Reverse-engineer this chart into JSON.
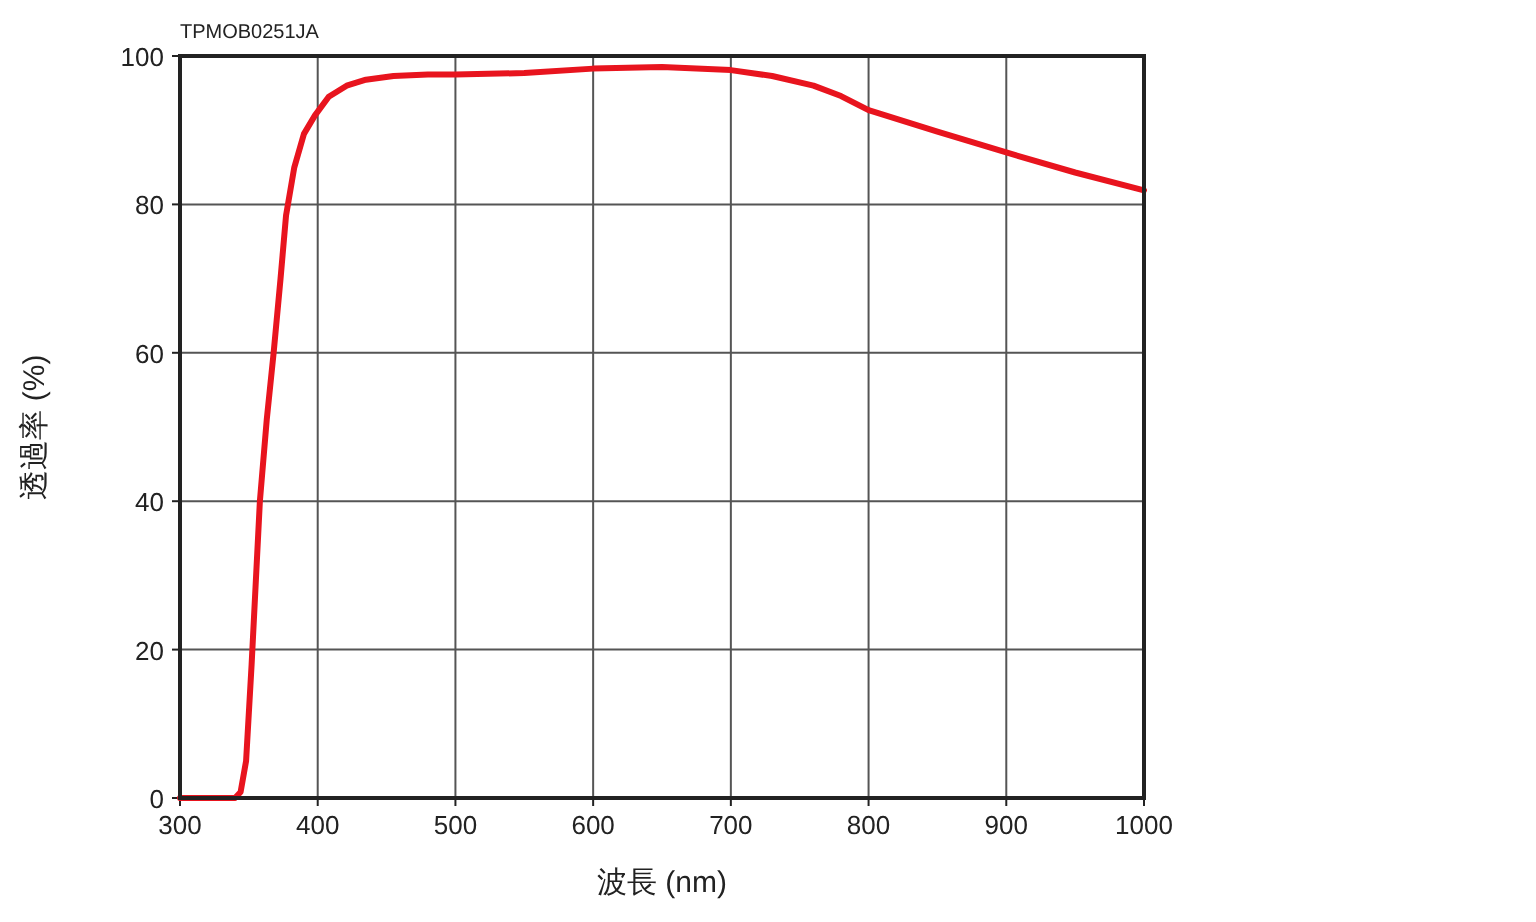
{
  "chart_data": {
    "type": "line",
    "xlabel": "波長 (nm)",
    "ylabel": "透過率 (%)",
    "annotations": [
      "TPMOB0251JA"
    ],
    "series": [
      {
        "color": "#e8141e",
        "x": [
          300,
          330,
          340,
          344,
          348,
          352,
          358,
          363,
          368,
          373,
          377,
          383,
          390,
          398,
          408,
          421,
          435,
          455,
          480,
          500,
          550,
          600,
          650,
          700,
          730,
          760,
          780,
          800,
          850,
          900,
          950,
          1000
        ],
        "values": [
          0,
          0,
          0,
          0.8,
          5,
          18,
          40,
          51,
          60,
          70,
          78.5,
          85,
          89.5,
          92,
          94.5,
          96,
          96.8,
          97.3,
          97.5,
          97.5,
          97.7,
          98.3,
          98.5,
          98.1,
          97.3,
          96,
          94.6,
          92.7,
          89.8,
          87,
          84.3,
          81.9
        ]
      }
    ],
    "xlim": [
      300,
      1000
    ],
    "ylim": [
      0,
      100
    ],
    "xticks": [
      300,
      400,
      500,
      600,
      700,
      800,
      900,
      1000
    ],
    "yticks": [
      0,
      20,
      40,
      60,
      80,
      100
    ],
    "grid": true,
    "marker": "none",
    "line_style": "solid"
  }
}
